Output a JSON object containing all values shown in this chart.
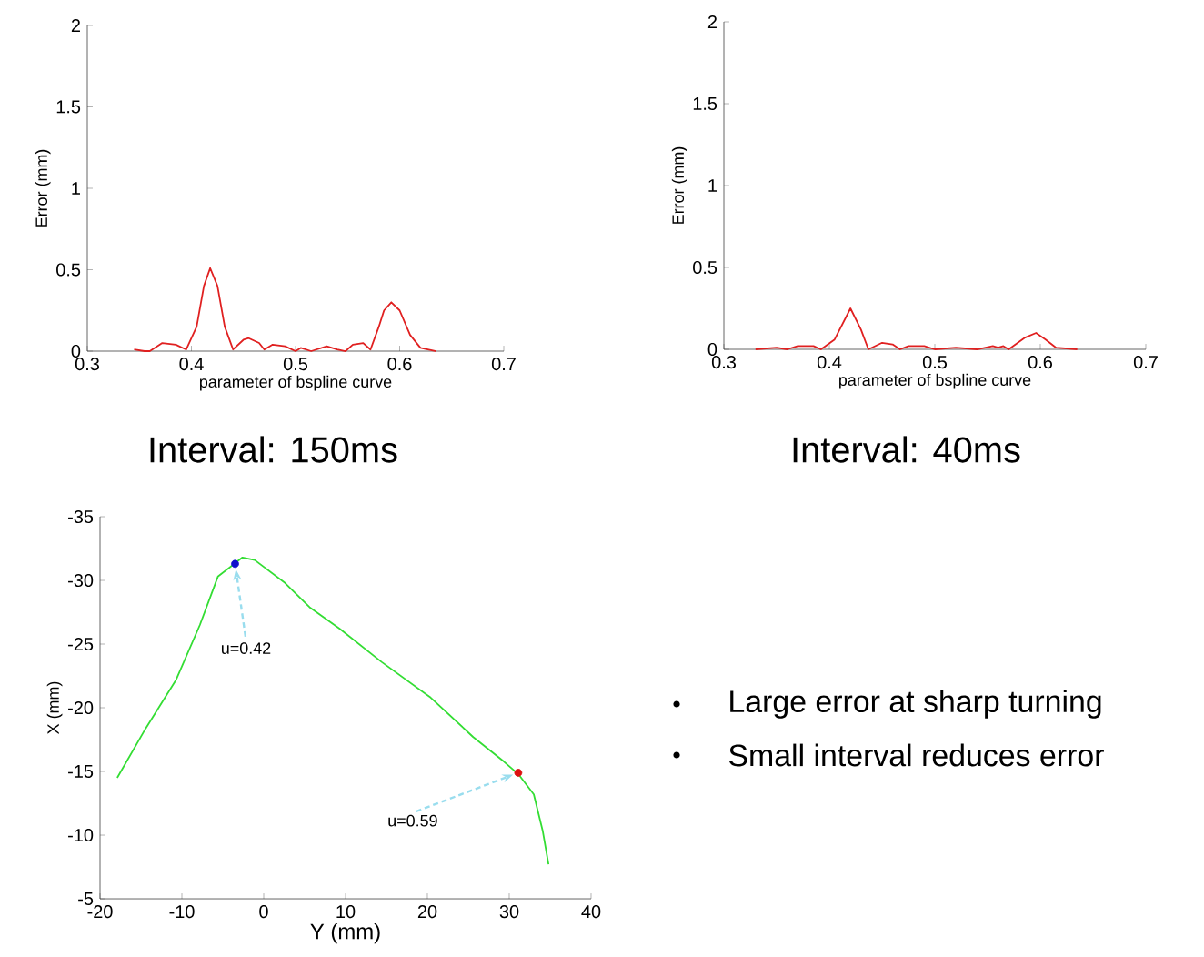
{
  "chart_data": [
    {
      "type": "line",
      "title": "Interval: 150ms",
      "xlabel": "parameter of bspline curve",
      "ylabel": "Error (mm)",
      "color": "#e02020",
      "x": [
        0.345,
        0.355,
        0.36,
        0.372,
        0.385,
        0.395,
        0.405,
        0.412,
        0.418,
        0.425,
        0.432,
        0.44,
        0.45,
        0.455,
        0.465,
        0.47,
        0.478,
        0.49,
        0.5,
        0.505,
        0.515,
        0.53,
        0.54,
        0.548,
        0.555,
        0.565,
        0.572,
        0.58,
        0.585,
        0.592,
        0.6,
        0.61,
        0.62,
        0.635
      ],
      "values": [
        0.01,
        0.0,
        0.0,
        0.05,
        0.04,
        0.01,
        0.15,
        0.4,
        0.51,
        0.4,
        0.15,
        0.01,
        0.07,
        0.08,
        0.05,
        0.01,
        0.04,
        0.03,
        0.0,
        0.02,
        0.0,
        0.03,
        0.01,
        0.0,
        0.04,
        0.05,
        0.01,
        0.15,
        0.25,
        0.3,
        0.25,
        0.1,
        0.02,
        0.0
      ],
      "xlim": [
        0.3,
        0.7
      ],
      "ylim": [
        0,
        2
      ],
      "xticks": [
        0.3,
        0.4,
        0.5,
        0.6,
        0.7
      ],
      "yticks": [
        0,
        0.5,
        1,
        1.5,
        2
      ]
    },
    {
      "type": "line",
      "title": "Interval: 40ms",
      "xlabel": "parameter of bspline curve",
      "ylabel": "Error (mm)",
      "color": "#e02020",
      "x": [
        0.33,
        0.35,
        0.36,
        0.37,
        0.385,
        0.392,
        0.405,
        0.42,
        0.43,
        0.437,
        0.45,
        0.46,
        0.467,
        0.475,
        0.49,
        0.5,
        0.52,
        0.54,
        0.555,
        0.56,
        0.565,
        0.57,
        0.585,
        0.596,
        0.605,
        0.615,
        0.635
      ],
      "values": [
        0.0,
        0.01,
        0.0,
        0.02,
        0.02,
        0.0,
        0.06,
        0.25,
        0.12,
        0.0,
        0.04,
        0.03,
        0.0,
        0.02,
        0.02,
        0.0,
        0.01,
        0.0,
        0.02,
        0.01,
        0.02,
        0.0,
        0.07,
        0.1,
        0.06,
        0.01,
        0.0
      ],
      "xlim": [
        0.3,
        0.7
      ],
      "ylim": [
        0,
        2
      ],
      "xticks": [
        0.3,
        0.4,
        0.5,
        0.6,
        0.7
      ],
      "yticks": [
        0,
        0.5,
        1,
        1.5,
        2
      ]
    },
    {
      "type": "line",
      "xlabel": "Y (mm)",
      "ylabel": "X (mm)",
      "series": [
        {
          "type": "line",
          "color": "#33dd33",
          "x": [
            -17.9,
            -14.4,
            -10.7,
            -7.8,
            -5.6,
            -3.6,
            -2.6,
            -1.1,
            2.6,
            5.6,
            9.3,
            14.4,
            20.4,
            25.6,
            29.3,
            31.1,
            33.0,
            34.1,
            34.8
          ],
          "values": [
            -14.5,
            -18.4,
            -22.2,
            -26.5,
            -30.3,
            -31.3,
            -31.8,
            -31.6,
            -29.8,
            -27.9,
            -26.2,
            -23.6,
            -20.8,
            -17.7,
            -15.8,
            -14.8,
            -13.2,
            -10.3,
            -7.7
          ]
        },
        {
          "type": "scatter",
          "marker": "circle",
          "colors": [
            "#1010cc",
            "#dd1010"
          ],
          "x": [
            -3.5,
            31.1
          ],
          "values": [
            -31.3,
            -14.9
          ]
        }
      ],
      "annotations": [
        {
          "text": "u=0.42",
          "x": -3.5,
          "y": -31.3
        },
        {
          "text": "u=0.59",
          "x": 31.1,
          "y": -14.9
        }
      ],
      "xlim": [
        -20,
        40
      ],
      "ylim": [
        -5,
        -35
      ],
      "xticks": [
        -20,
        -10,
        0,
        10,
        20,
        30,
        40
      ],
      "yticks": [
        -35,
        -30,
        -25,
        -20,
        -15,
        -10,
        -5
      ]
    },
    {
      "type": "other",
      "annotations": [
        "Large error at sharp turning",
        "Small interval reduces error"
      ]
    }
  ]
}
